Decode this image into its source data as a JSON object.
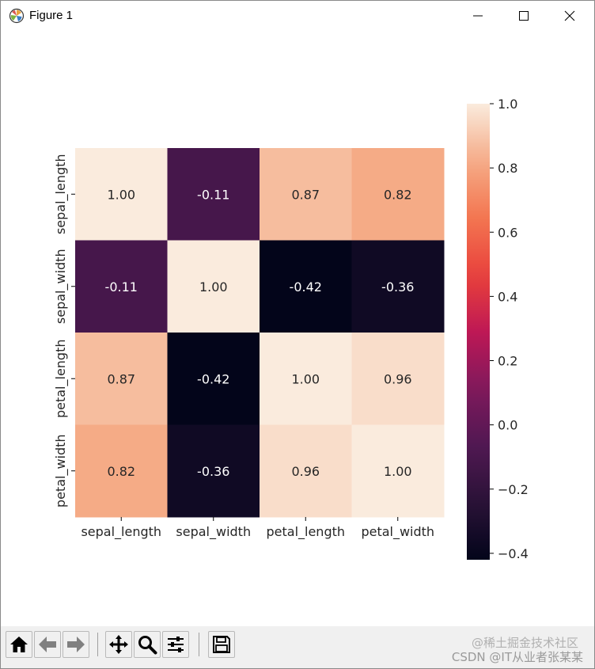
{
  "window": {
    "title": "Figure 1"
  },
  "chart_data": {
    "type": "heatmap",
    "title": "",
    "row_labels": [
      "sepal_length",
      "sepal_width",
      "petal_length",
      "petal_width"
    ],
    "col_labels": [
      "sepal_length",
      "sepal_width",
      "petal_length",
      "petal_width"
    ],
    "values": [
      [
        1.0,
        -0.11,
        0.87,
        0.82
      ],
      [
        -0.11,
        1.0,
        -0.42,
        -0.36
      ],
      [
        0.87,
        -0.42,
        1.0,
        0.96
      ],
      [
        0.82,
        -0.36,
        0.96,
        1.0
      ]
    ],
    "annotations": [
      [
        "1.00",
        "-0.11",
        "0.87",
        "0.82"
      ],
      [
        "-0.11",
        "1.00",
        "-0.42",
        "-0.36"
      ],
      [
        "0.87",
        "-0.42",
        "1.00",
        "0.96"
      ],
      [
        "0.82",
        "-0.36",
        "0.96",
        "1.00"
      ]
    ],
    "colormap": "rocket",
    "colorbar": {
      "vmin": -0.42,
      "vmax": 1.0,
      "ticks": [
        1.0,
        0.8,
        0.6,
        0.4,
        0.2,
        0.0,
        -0.2,
        -0.4
      ],
      "tick_labels": [
        "1.0",
        "0.8",
        "0.6",
        "0.4",
        "0.2",
        "0.0",
        "−0.2",
        "−0.4"
      ]
    }
  },
  "toolbar": {
    "buttons": [
      {
        "name": "home-icon"
      },
      {
        "name": "back-icon"
      },
      {
        "name": "forward-icon"
      },
      {
        "name": "pan-icon"
      },
      {
        "name": "zoom-icon"
      },
      {
        "name": "configure-subplots-icon"
      },
      {
        "name": "save-icon"
      }
    ]
  },
  "watermark": {
    "line1": "@稀土掘金技术社区",
    "line2": "CSDN @IT从业者张某某"
  }
}
